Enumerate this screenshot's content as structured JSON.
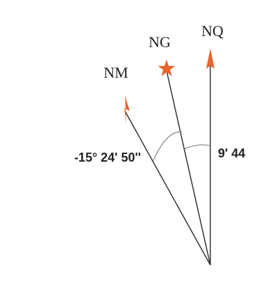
{
  "labels": {
    "nq": "NQ",
    "ng": "NG",
    "nm": "NM",
    "magnetic_declination": "-15° 24' 50''",
    "grid_convergence": "9' 44"
  },
  "colors": {
    "accent": "#e8642c",
    "line": "#333333",
    "arc": "#8c8c8c",
    "label": "#222222"
  },
  "icons": {
    "grid_north": "star-icon",
    "quadrillage_north": "arrowhead-icon",
    "magnetic_north": "half-arrowhead-icon"
  }
}
